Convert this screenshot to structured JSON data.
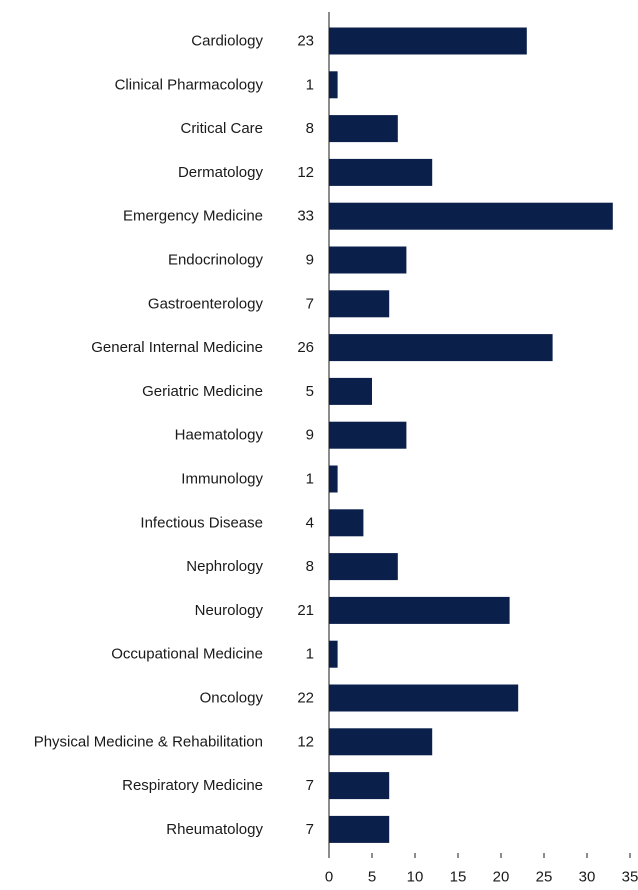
{
  "chart_data": {
    "type": "bar",
    "orientation": "horizontal",
    "title": "",
    "xlabel": "",
    "ylabel": "",
    "categories": [
      "Cardiology",
      "Clinical Pharmacology",
      "Critical Care",
      "Dermatology",
      "Emergency Medicine",
      "Endocrinology",
      "Gastroenterology",
      "General Internal Medicine",
      "Geriatric Medicine",
      "Haematology",
      "Immunology",
      "Infectious Disease",
      "Nephrology",
      "Neurology",
      "Occupational Medicine",
      "Oncology",
      "Physical Medicine & Rehabilitation",
      "Respiratory Medicine",
      "Rheumatology"
    ],
    "values": [
      23,
      1,
      8,
      12,
      33,
      9,
      7,
      26,
      5,
      9,
      1,
      4,
      8,
      21,
      1,
      22,
      12,
      7,
      7
    ],
    "value_labels": [
      "23",
      "1",
      "8",
      "12",
      "33",
      "9",
      "7",
      "26",
      "5",
      "9",
      "1",
      "4",
      "8",
      "21",
      "1",
      "22",
      "12",
      "7",
      "7"
    ],
    "xlim": [
      0,
      35
    ],
    "xticks": [
      0,
      5,
      10,
      15,
      20,
      25,
      30,
      35
    ],
    "xtick_labels": [
      "0",
      "5",
      "10",
      "15",
      "20",
      "25",
      "30",
      "35"
    ],
    "grid": false,
    "legend": "none",
    "bar_color": "#0b1f4b",
    "axis_color": "#1a1a1a",
    "text_color": "#1a1a1a"
  }
}
